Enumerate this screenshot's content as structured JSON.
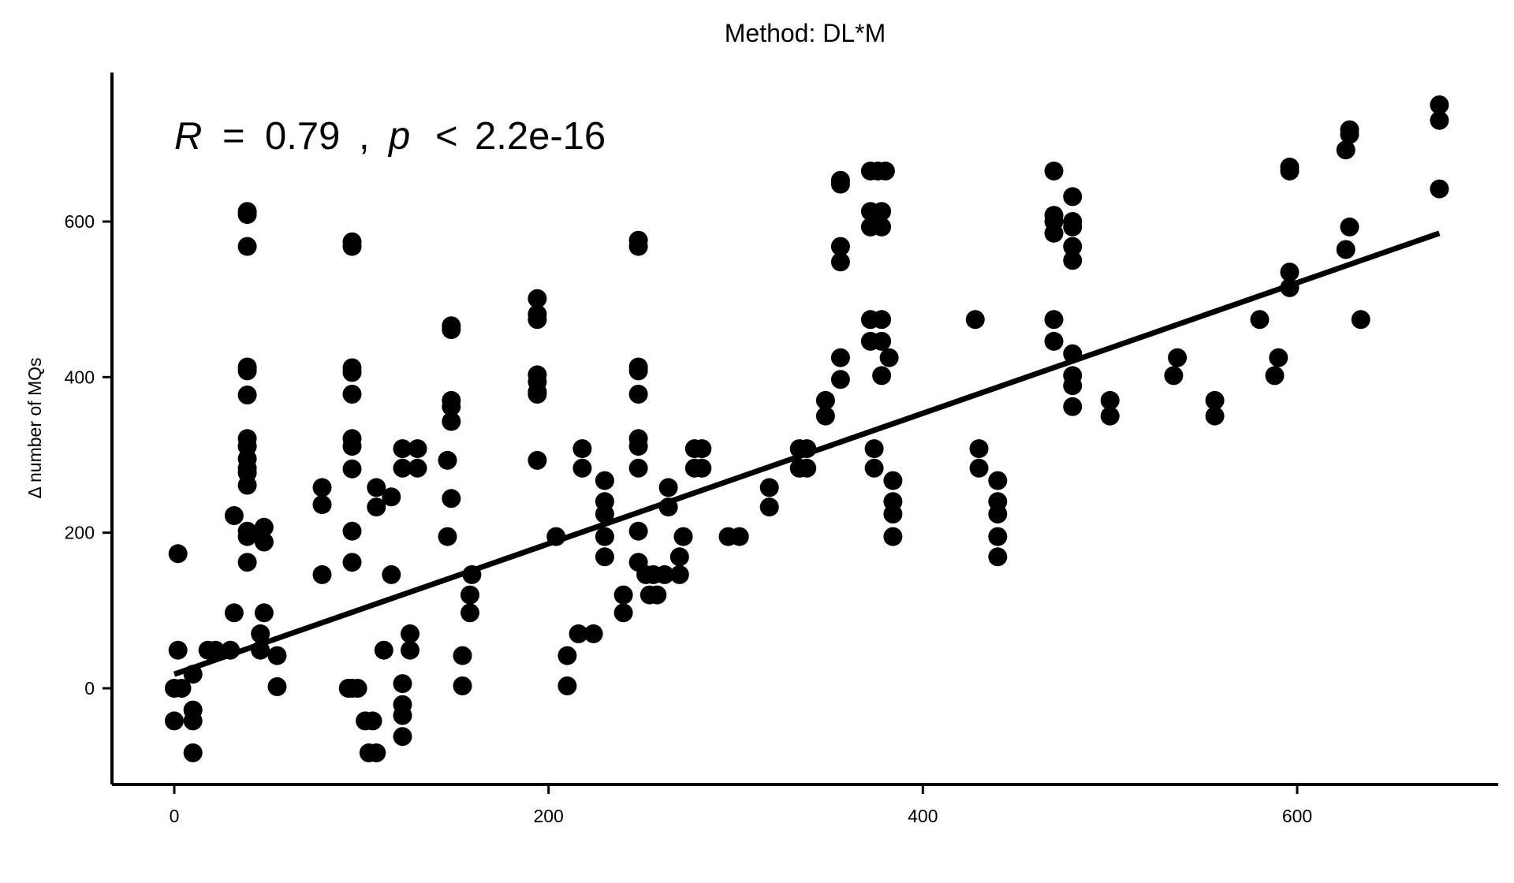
{
  "chart_data": {
    "type": "scatter",
    "title": "Method: DL*M",
    "xlabel": "",
    "ylabel": "Δ number of MQs",
    "xlim": [
      -16,
      704
    ],
    "ylim": [
      -125,
      790
    ],
    "x_ticks": [
      "0",
      "200",
      "400",
      "600"
    ],
    "x_tick_values": [
      0,
      200,
      400,
      600
    ],
    "y_ticks": [
      "0",
      "200",
      "400",
      "600"
    ],
    "y_tick_values": [
      0,
      200,
      400,
      600
    ],
    "grid": false,
    "legend": "none",
    "annotation": {
      "r_symbol": "R",
      "r_eq": "=",
      "r_value": "0.79",
      "sep": ",",
      "p_symbol": "p",
      "p_lt": "<",
      "p_value": "2.2e-16"
    },
    "point_color": "#000000",
    "line_color": "#000000",
    "fit_line": {
      "x": [
        0,
        676
      ],
      "y": [
        18,
        585
      ]
    },
    "points": [
      [
        0,
        0
      ],
      [
        0,
        -42
      ],
      [
        2,
        173
      ],
      [
        2,
        49
      ],
      [
        4,
        0
      ],
      [
        10,
        18
      ],
      [
        10,
        -28
      ],
      [
        10,
        -42
      ],
      [
        10,
        -83
      ],
      [
        18,
        49
      ],
      [
        22,
        49
      ],
      [
        30,
        49
      ],
      [
        32,
        222
      ],
      [
        32,
        97
      ],
      [
        39,
        609
      ],
      [
        39,
        613
      ],
      [
        39,
        568
      ],
      [
        39,
        413
      ],
      [
        39,
        408
      ],
      [
        39,
        377
      ],
      [
        39,
        321
      ],
      [
        39,
        311
      ],
      [
        39,
        295
      ],
      [
        39,
        283
      ],
      [
        39,
        277
      ],
      [
        39,
        261
      ],
      [
        39,
        202
      ],
      [
        39,
        195
      ],
      [
        39,
        162
      ],
      [
        46,
        200
      ],
      [
        46,
        70
      ],
      [
        46,
        49
      ],
      [
        48,
        207
      ],
      [
        48,
        188
      ],
      [
        48,
        97
      ],
      [
        55,
        42
      ],
      [
        55,
        2
      ],
      [
        79,
        258
      ],
      [
        79,
        236
      ],
      [
        79,
        146
      ],
      [
        93,
        0
      ],
      [
        95,
        0
      ],
      [
        95,
        574
      ],
      [
        95,
        568
      ],
      [
        95,
        412
      ],
      [
        95,
        406
      ],
      [
        95,
        378
      ],
      [
        95,
        321
      ],
      [
        95,
        311
      ],
      [
        95,
        282
      ],
      [
        95,
        202
      ],
      [
        95,
        162
      ],
      [
        98,
        0
      ],
      [
        102,
        -42
      ],
      [
        104,
        -83
      ],
      [
        106,
        -42
      ],
      [
        108,
        -83
      ],
      [
        108,
        258
      ],
      [
        108,
        233
      ],
      [
        112,
        49
      ],
      [
        116,
        246
      ],
      [
        116,
        146
      ],
      [
        122,
        308
      ],
      [
        122,
        283
      ],
      [
        122,
        6
      ],
      [
        122,
        -21
      ],
      [
        122,
        -35
      ],
      [
        122,
        -62
      ],
      [
        126,
        70
      ],
      [
        126,
        49
      ],
      [
        130,
        308
      ],
      [
        130,
        283
      ],
      [
        146,
        293
      ],
      [
        146,
        195
      ],
      [
        148,
        466
      ],
      [
        148,
        461
      ],
      [
        148,
        370
      ],
      [
        148,
        362
      ],
      [
        148,
        343
      ],
      [
        148,
        244
      ],
      [
        154,
        42
      ],
      [
        154,
        3
      ],
      [
        158,
        120
      ],
      [
        158,
        97
      ],
      [
        159,
        146
      ],
      [
        194,
        501
      ],
      [
        194,
        481
      ],
      [
        194,
        474
      ],
      [
        194,
        403
      ],
      [
        194,
        394
      ],
      [
        194,
        381
      ],
      [
        194,
        378
      ],
      [
        194,
        293
      ],
      [
        204,
        195
      ],
      [
        210,
        42
      ],
      [
        210,
        3
      ],
      [
        216,
        70
      ],
      [
        218,
        308
      ],
      [
        218,
        283
      ],
      [
        224,
        70
      ],
      [
        230,
        267
      ],
      [
        230,
        240
      ],
      [
        230,
        224
      ],
      [
        230,
        195
      ],
      [
        230,
        169
      ],
      [
        240,
        120
      ],
      [
        240,
        97
      ],
      [
        248,
        576
      ],
      [
        248,
        568
      ],
      [
        248,
        413
      ],
      [
        248,
        408
      ],
      [
        248,
        378
      ],
      [
        248,
        321
      ],
      [
        248,
        311
      ],
      [
        248,
        283
      ],
      [
        248,
        202
      ],
      [
        248,
        162
      ],
      [
        252,
        146
      ],
      [
        254,
        120
      ],
      [
        256,
        146
      ],
      [
        258,
        120
      ],
      [
        262,
        146
      ],
      [
        264,
        258
      ],
      [
        264,
        233
      ],
      [
        270,
        169
      ],
      [
        270,
        146
      ],
      [
        272,
        195
      ],
      [
        278,
        308
      ],
      [
        278,
        283
      ],
      [
        282,
        308
      ],
      [
        282,
        283
      ],
      [
        296,
        195
      ],
      [
        302,
        195
      ],
      [
        318,
        258
      ],
      [
        318,
        233
      ],
      [
        334,
        308
      ],
      [
        334,
        283
      ],
      [
        338,
        308
      ],
      [
        338,
        283
      ],
      [
        348,
        370
      ],
      [
        348,
        350
      ],
      [
        356,
        653
      ],
      [
        356,
        648
      ],
      [
        356,
        568
      ],
      [
        356,
        548
      ],
      [
        356,
        425
      ],
      [
        356,
        397
      ],
      [
        372,
        665
      ],
      [
        372,
        613
      ],
      [
        372,
        593
      ],
      [
        372,
        474
      ],
      [
        372,
        446
      ],
      [
        374,
        308
      ],
      [
        374,
        283
      ],
      [
        376,
        665
      ],
      [
        376,
        600
      ],
      [
        378,
        613
      ],
      [
        378,
        593
      ],
      [
        378,
        474
      ],
      [
        378,
        446
      ],
      [
        378,
        402
      ],
      [
        380,
        665
      ],
      [
        382,
        425
      ],
      [
        384,
        267
      ],
      [
        384,
        240
      ],
      [
        384,
        224
      ],
      [
        384,
        195
      ],
      [
        428,
        474
      ],
      [
        430,
        308
      ],
      [
        430,
        283
      ],
      [
        440,
        267
      ],
      [
        440,
        240
      ],
      [
        440,
        224
      ],
      [
        440,
        195
      ],
      [
        440,
        169
      ],
      [
        470,
        665
      ],
      [
        470,
        608
      ],
      [
        470,
        600
      ],
      [
        470,
        585
      ],
      [
        470,
        474
      ],
      [
        470,
        446
      ],
      [
        480,
        632
      ],
      [
        480,
        600
      ],
      [
        480,
        593
      ],
      [
        480,
        568
      ],
      [
        480,
        550
      ],
      [
        480,
        430
      ],
      [
        480,
        402
      ],
      [
        480,
        389
      ],
      [
        480,
        362
      ],
      [
        500,
        370
      ],
      [
        500,
        350
      ],
      [
        534,
        402
      ],
      [
        536,
        425
      ],
      [
        556,
        370
      ],
      [
        556,
        350
      ],
      [
        580,
        474
      ],
      [
        588,
        402
      ],
      [
        590,
        425
      ],
      [
        596,
        670
      ],
      [
        596,
        665
      ],
      [
        596,
        535
      ],
      [
        596,
        515
      ],
      [
        626,
        692
      ],
      [
        626,
        564
      ],
      [
        628,
        718
      ],
      [
        628,
        712
      ],
      [
        628,
        593
      ],
      [
        634,
        474
      ],
      [
        676,
        750
      ],
      [
        676,
        730
      ],
      [
        676,
        642
      ]
    ]
  }
}
